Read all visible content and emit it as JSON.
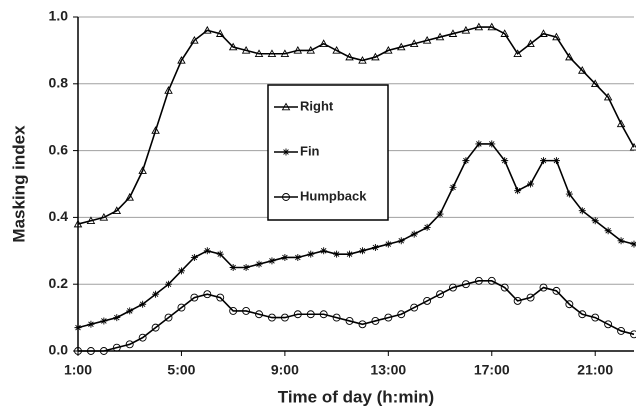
{
  "chart_data": {
    "type": "line",
    "y_label": "Masking index",
    "x_label": "Time of day (h:min)",
    "x": [
      1,
      1.5,
      2,
      2.5,
      3,
      3.5,
      4,
      4.5,
      5,
      5.5,
      6,
      6.5,
      7,
      7.5,
      8,
      8.5,
      9,
      9.5,
      10,
      10.5,
      11,
      11.5,
      12,
      12.5,
      13,
      13.5,
      14,
      14.5,
      15,
      15.5,
      16,
      16.5,
      17,
      17.5,
      18,
      18.5,
      19,
      19.5,
      20,
      20.5,
      21,
      21.5,
      22,
      22.5
    ],
    "series": [
      {
        "name": "Right",
        "color": "#000000",
        "marker": "triangle",
        "values": [
          0.38,
          0.39,
          0.4,
          0.42,
          0.46,
          0.54,
          0.66,
          0.78,
          0.87,
          0.93,
          0.96,
          0.95,
          0.91,
          0.9,
          0.89,
          0.89,
          0.89,
          0.9,
          0.9,
          0.92,
          0.9,
          0.88,
          0.87,
          0.88,
          0.9,
          0.91,
          0.92,
          0.93,
          0.94,
          0.95,
          0.96,
          0.97,
          0.97,
          0.95,
          0.89,
          0.92,
          0.95,
          0.94,
          0.88,
          0.84,
          0.8,
          0.76,
          0.68,
          0.61
        ]
      },
      {
        "name": "Fin",
        "color": "#000000",
        "marker": "star",
        "values": [
          0.07,
          0.08,
          0.09,
          0.1,
          0.12,
          0.14,
          0.17,
          0.2,
          0.24,
          0.28,
          0.3,
          0.29,
          0.25,
          0.25,
          0.26,
          0.27,
          0.28,
          0.28,
          0.29,
          0.3,
          0.29,
          0.29,
          0.3,
          0.31,
          0.32,
          0.33,
          0.35,
          0.37,
          0.41,
          0.49,
          0.57,
          0.62,
          0.62,
          0.57,
          0.48,
          0.5,
          0.57,
          0.57,
          0.47,
          0.42,
          0.39,
          0.36,
          0.33,
          0.32
        ]
      },
      {
        "name": "Humpback",
        "color": "#000000",
        "marker": "circle",
        "values": [
          0.0,
          0.0,
          0.0,
          0.01,
          0.02,
          0.04,
          0.07,
          0.1,
          0.13,
          0.16,
          0.17,
          0.16,
          0.12,
          0.12,
          0.11,
          0.1,
          0.1,
          0.11,
          0.11,
          0.11,
          0.1,
          0.09,
          0.08,
          0.09,
          0.1,
          0.11,
          0.13,
          0.15,
          0.17,
          0.19,
          0.2,
          0.21,
          0.21,
          0.19,
          0.15,
          0.16,
          0.19,
          0.18,
          0.14,
          0.11,
          0.1,
          0.08,
          0.06,
          0.05
        ]
      }
    ],
    "xlim": [
      1,
      22.5
    ],
    "xticks": [
      {
        "value": 1,
        "label": "1:00"
      },
      {
        "value": 5,
        "label": "5:00"
      },
      {
        "value": 9,
        "label": "9:00"
      },
      {
        "value": 13,
        "label": "13:00"
      },
      {
        "value": 17,
        "label": "17:00"
      },
      {
        "value": 21,
        "label": "21:00"
      }
    ],
    "ylim": [
      0,
      1
    ],
    "yticks": [
      {
        "value": 0,
        "label": "0.0"
      },
      0.2,
      0.4,
      0.6,
      0.8,
      {
        "value": 1,
        "label": "1.0"
      }
    ],
    "grid": true,
    "grid_color": "#a0a0a0"
  }
}
